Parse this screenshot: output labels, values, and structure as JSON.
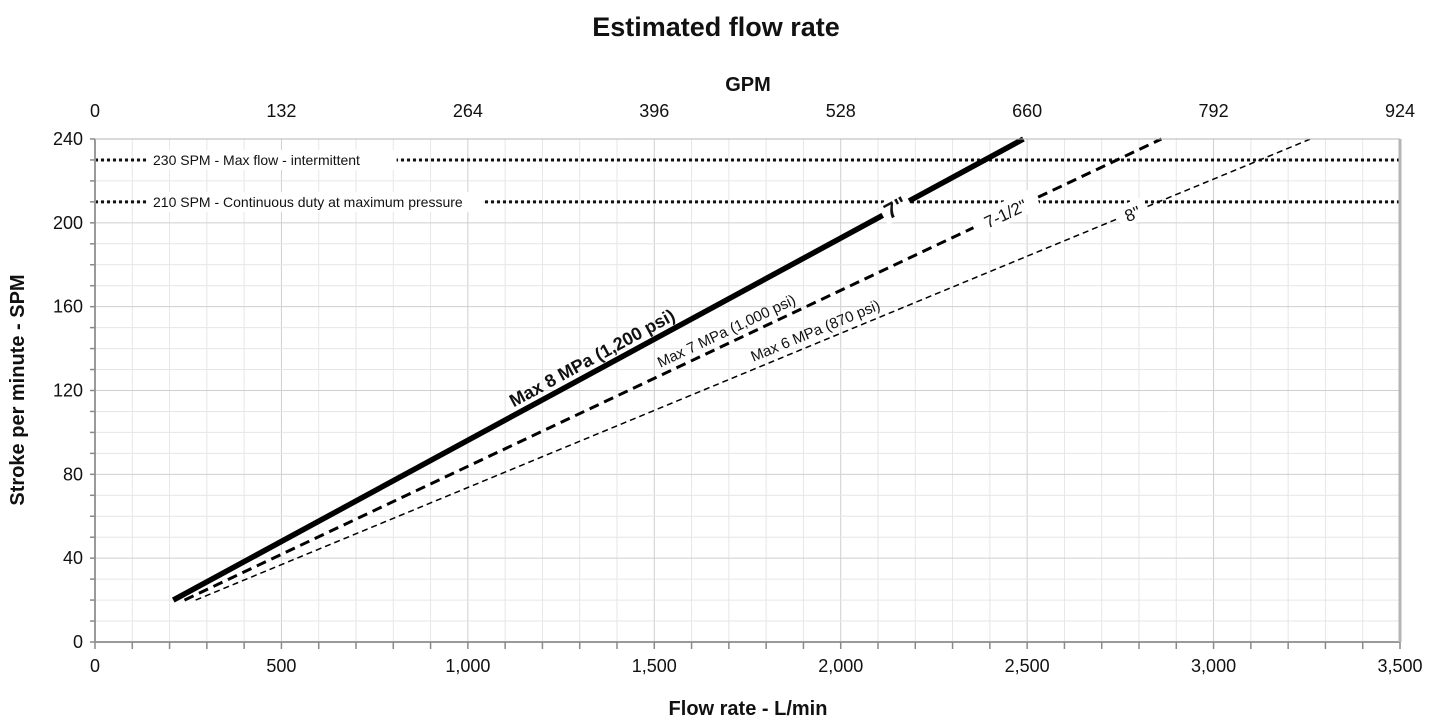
{
  "chart_data": {
    "type": "line",
    "title": "Estimated flow rate",
    "xlabel": "Flow rate - L/min",
    "ylabel": "Stroke per minute - SPM",
    "x2label": "GPM",
    "xlim": [
      0,
      3500
    ],
    "ylim": [
      0,
      240
    ],
    "x2lim": [
      0,
      924
    ],
    "x_ticks": [
      0,
      500,
      1000,
      1500,
      2000,
      2500,
      3000,
      3500
    ],
    "x_tick_labels": [
      "0",
      "500",
      "1,000",
      "1,500",
      "2,000",
      "2,500",
      "3,000",
      "3,500"
    ],
    "y_ticks": [
      0,
      40,
      80,
      120,
      160,
      200,
      240
    ],
    "y_tick_labels": [
      "0",
      "40",
      "80",
      "120",
      "160",
      "200",
      "240"
    ],
    "x2_ticks": [
      0,
      132,
      264,
      396,
      528,
      660,
      792,
      924
    ],
    "x2_tick_labels": [
      "0",
      "132",
      "264",
      "396",
      "528",
      "660",
      "792",
      "924"
    ],
    "grid": true,
    "reference_lines": [
      {
        "y": 230,
        "label": "230 SPM - Max flow - intermittent"
      },
      {
        "y": 210,
        "label": "210 SPM - Continuous duty at maximum pressure"
      }
    ],
    "series": [
      {
        "name": "7\"",
        "annotation": "Max 8 MPa (1,200 psi)",
        "style": "solid-thick",
        "x": [
          210,
          2490
        ],
        "y": [
          20,
          240
        ]
      },
      {
        "name": "7-1/2\"",
        "annotation": "Max 7 MPa (1,000 psi)",
        "style": "dashed-medium",
        "x": [
          240,
          2860
        ],
        "y": [
          20,
          240
        ]
      },
      {
        "name": "8\"",
        "annotation": "Max 6 MPa (870 psi)",
        "style": "dashed-thin",
        "x": [
          270,
          3260
        ],
        "y": [
          20,
          240
        ]
      }
    ]
  }
}
